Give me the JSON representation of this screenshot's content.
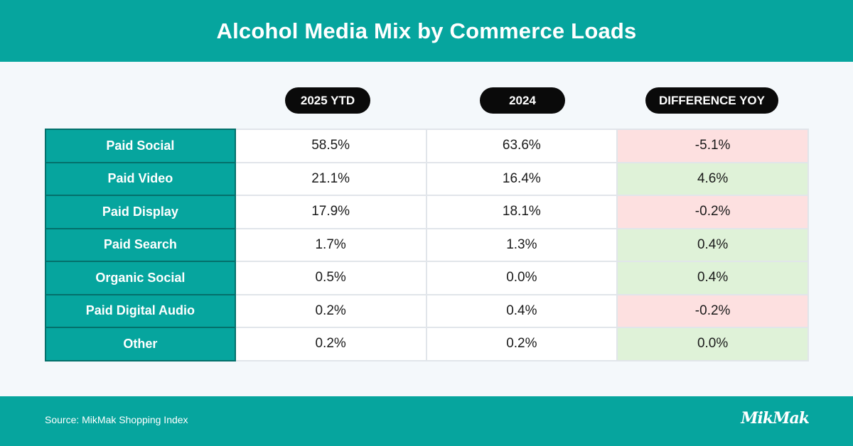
{
  "header": {
    "title": "Alcohol Media Mix by Commerce Loads"
  },
  "chart_data": {
    "type": "table",
    "title": "Alcohol Media Mix by Commerce Loads",
    "columns": [
      "2025 YTD",
      "2024",
      "DIFFERENCE YOY"
    ],
    "rows": [
      {
        "label": "Paid Social",
        "y2025": "58.5%",
        "y2024": "63.6%",
        "diff": "-5.1%",
        "trend": "neg"
      },
      {
        "label": "Paid Video",
        "y2025": "21.1%",
        "y2024": "16.4%",
        "diff": "4.6%",
        "trend": "pos"
      },
      {
        "label": "Paid Display",
        "y2025": "17.9%",
        "y2024": "18.1%",
        "diff": "-0.2%",
        "trend": "neg"
      },
      {
        "label": "Paid Search",
        "y2025": "1.7%",
        "y2024": "1.3%",
        "diff": "0.4%",
        "trend": "pos"
      },
      {
        "label": "Organic Social",
        "y2025": "0.5%",
        "y2024": "0.0%",
        "diff": "0.4%",
        "trend": "pos"
      },
      {
        "label": "Paid Digital Audio",
        "y2025": "0.2%",
        "y2024": "0.4%",
        "diff": "-0.2%",
        "trend": "neg"
      },
      {
        "label": "Other",
        "y2025": "0.2%",
        "y2024": "0.2%",
        "diff": "0.0%",
        "trend": "pos"
      }
    ]
  },
  "footer": {
    "source": "Source: MikMak Shopping Index",
    "logo_text": "MikMak"
  },
  "colors": {
    "teal": "#06a59e",
    "negative": "#fde0e0",
    "positive": "#dff2d8"
  }
}
